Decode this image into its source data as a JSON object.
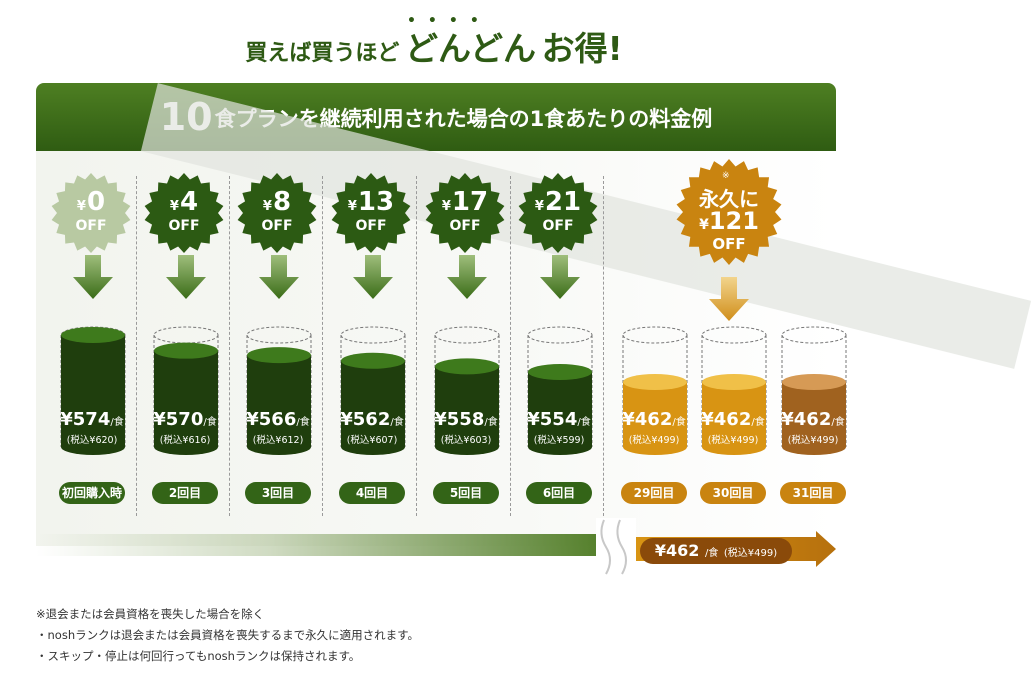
{
  "headline": {
    "small1": "買えば買うほど",
    "large1": "どんどん",
    "large2": "お得",
    "dots": "••••",
    "exclaim": "!"
  },
  "banner": {
    "num": "10",
    "rest": "食プランを継続利用された場合の1食あたりの料金例"
  },
  "columns": [
    {
      "amount": "0",
      "off": "OFF",
      "price": "574",
      "tax": "(税込¥620)",
      "label": "初回購入時",
      "fill": 1.0,
      "theme": "green"
    },
    {
      "amount": "4",
      "off": "OFF",
      "price": "570",
      "tax": "(税込¥616)",
      "label": "2回目",
      "fill": 0.86,
      "theme": "green"
    },
    {
      "amount": "8",
      "off": "OFF",
      "price": "566",
      "tax": "(税込¥612)",
      "label": "3回目",
      "fill": 0.82,
      "theme": "green"
    },
    {
      "amount": "13",
      "off": "OFF",
      "price": "562",
      "tax": "(税込¥607)",
      "label": "4回目",
      "fill": 0.77,
      "theme": "green"
    },
    {
      "amount": "17",
      "off": "OFF",
      "price": "558",
      "tax": "(税込¥603)",
      "label": "5回目",
      "fill": 0.72,
      "theme": "green"
    },
    {
      "amount": "21",
      "off": "OFF",
      "price": "554",
      "tax": "(税込¥599)",
      "label": "6回目",
      "fill": 0.67,
      "theme": "green"
    },
    {
      "amount": "",
      "off": "",
      "price": "462",
      "tax": "(税込¥499)",
      "label": "29回目",
      "fill": 0.58,
      "theme": "orange"
    },
    {
      "amount": "",
      "off": "",
      "price": "462",
      "tax": "(税込¥499)",
      "label": "30回目",
      "fill": 0.58,
      "theme": "orange"
    },
    {
      "amount": "",
      "off": "",
      "price": "462",
      "tax": "(税込¥499)",
      "label": "31回目",
      "fill": 0.58,
      "theme": "brown"
    }
  ],
  "units": {
    "yen": "¥",
    "per_meal": "/食"
  },
  "permanent_badge": {
    "line1": "永久に",
    "note_mark": "※",
    "amount": "121",
    "off": "OFF"
  },
  "bottom_price": {
    "price": "462",
    "per": "/食",
    "tax": "(税込¥499)"
  },
  "notes": [
    "※退会または会員資格を喪失した場合を除く",
    "・noshランクは退会または会員資格を喪失するまで永久に適用されます。",
    "・スキップ・停止は何回行ってもnoshランクは保持されます。"
  ],
  "colors": {
    "green_dark": "#1f3e0d",
    "green_mid": "#336417",
    "orange": "#d89413",
    "brown": "#a0621f",
    "banner": "#3c6b18"
  }
}
